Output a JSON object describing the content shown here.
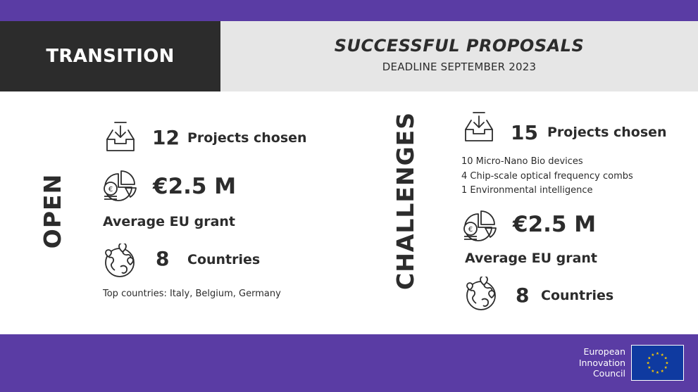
{
  "header": {
    "category": "TRANSITION",
    "title": "SUCCESSFUL PROPOSALS",
    "subtitle": "DEADLINE SEPTEMBER 2023"
  },
  "open": {
    "label": "OPEN",
    "projects_number": "12",
    "projects_label": "Projects chosen",
    "grant_value": "€2.5 M",
    "grant_label": "Average EU grant",
    "countries_number": "8",
    "countries_label": "Countries",
    "top_countries": "Top countries: Italy, Belgium, Germany"
  },
  "challenges": {
    "label": "CHALLENGES",
    "projects_number": "15",
    "projects_label": "Projects chosen",
    "breakdown": [
      "10 Micro-Nano Bio devices",
      "4 Chip-scale optical frequency combs",
      "1 Environmental intelligence"
    ],
    "grant_value": "€2.5 M",
    "grant_label": "Average EU grant",
    "countries_number": "8",
    "countries_label": "Countries"
  },
  "footer": {
    "org_line1": "European",
    "org_line2": "Innovation",
    "org_line3": "Council"
  },
  "colors": {
    "purple": "#5a3ca4",
    "dark": "#2c2c2c",
    "light_gray": "#e6e6e6",
    "eu_blue": "#0f3aa0",
    "eu_star": "#ffcc00"
  },
  "icons": [
    "inbox-download-icon",
    "coins-pie-chart-icon",
    "globe-pins-icon",
    "eu-flag-icon"
  ]
}
